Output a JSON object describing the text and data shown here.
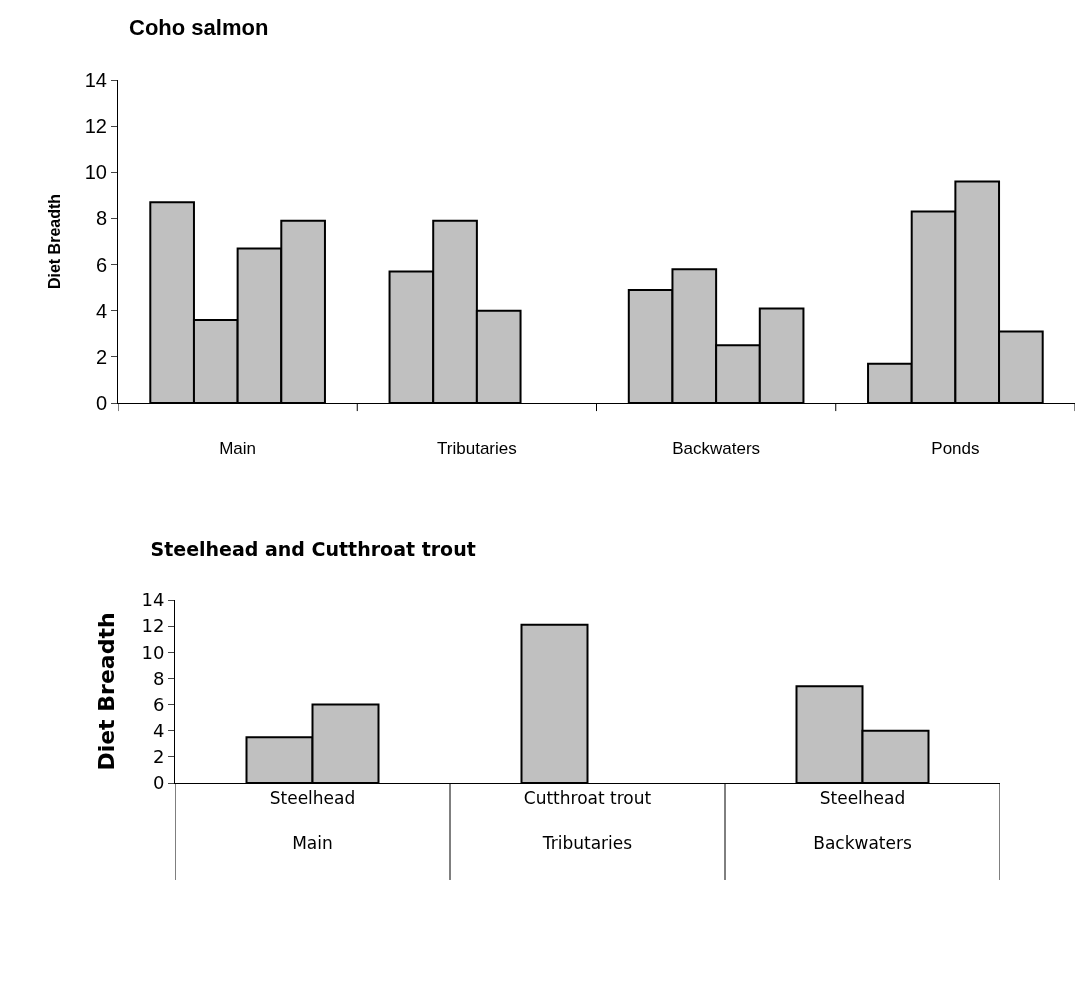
{
  "chart_data": [
    {
      "type": "bar",
      "title": "Coho salmon",
      "ylabel": "Diet Breadth",
      "categories": [
        "Main",
        "Tributaries",
        "Backwaters",
        "Ponds"
      ],
      "series": [
        {
          "color": "#c0c0c0",
          "values": [
            8.7,
            5.7,
            4.9,
            1.7
          ]
        },
        {
          "color": "#c0c0c0",
          "values": [
            3.6,
            7.9,
            5.8,
            8.3
          ]
        },
        {
          "color": "#c0c0c0",
          "values": [
            6.7,
            4.0,
            2.5,
            9.6
          ]
        },
        {
          "color": "#c0c0c0",
          "values": [
            7.9,
            null,
            4.1,
            3.1
          ]
        }
      ],
      "ylim": [
        0,
        14
      ],
      "yticks": [
        0,
        2,
        4,
        6,
        8,
        10,
        12,
        14
      ]
    },
    {
      "type": "bar",
      "title": "Steelhead and Cutthroat trout",
      "ylabel": "Diet Breadth",
      "categories": [
        "Steelhead\nMain",
        "Cutthroat trout\nTributaries",
        "Steelhead\nBackwaters"
      ],
      "series": [
        {
          "color": "#c0c0c0",
          "values": [
            3.5,
            12.1,
            7.4
          ]
        },
        {
          "color": "#c0c0c0",
          "values": [
            6.0,
            null,
            4.0
          ]
        }
      ],
      "ylim": [
        0,
        14
      ],
      "yticks": [
        0,
        2,
        4,
        6,
        8,
        10,
        12,
        14
      ]
    }
  ]
}
